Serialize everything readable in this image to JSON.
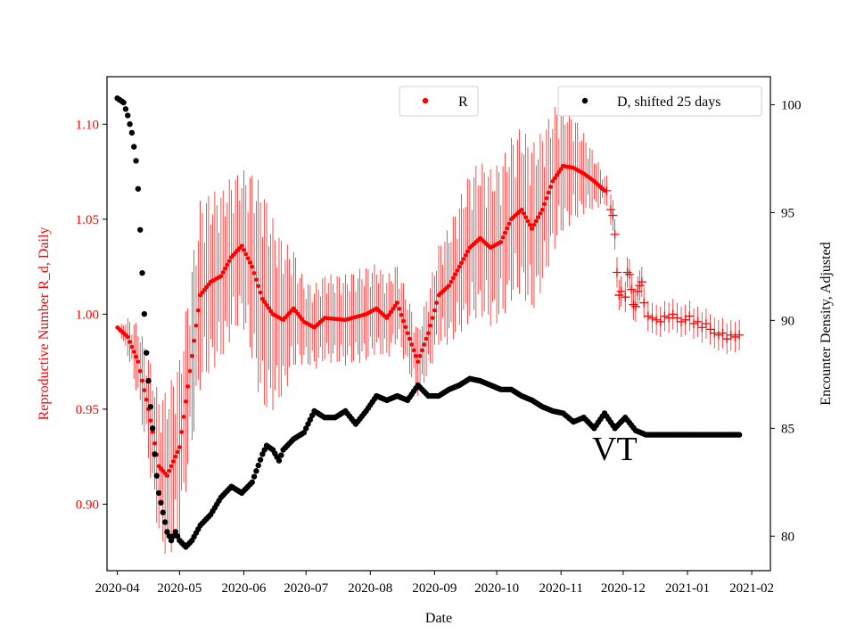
{
  "chart_data": {
    "type": "scatter",
    "title": "",
    "xlabel": "Date",
    "ylabel_left": "Reproductive Number R_d, Daily",
    "ylabel_right": "Encounter Density, Adjusted",
    "annotation": "VT",
    "x_ticks": [
      "2020-04",
      "2020-05",
      "2020-06",
      "2020-07",
      "2020-08",
      "2020-09",
      "2020-10",
      "2020-11",
      "2020-12",
      "2021-01",
      "2021-02"
    ],
    "y_left_ticks": [
      "0.90",
      "0.95",
      "1.00",
      "1.05",
      "1.10"
    ],
    "y_right_ticks": [
      "80",
      "85",
      "90",
      "95",
      "100"
    ],
    "x_range_days": [
      -5,
      315
    ],
    "y_left_range": [
      0.865,
      1.125
    ],
    "y_right_range": [
      78.4,
      101.3
    ],
    "colors": {
      "R": "#ff0000",
      "D": "#000000",
      "left_axis": "#ff0000"
    },
    "legend": [
      {
        "label": "R",
        "color": "#ff0000",
        "placement": "top-center"
      },
      {
        "label": "D, shifted 25 days",
        "color": "#000000",
        "placement": "top-right"
      }
    ],
    "series": [
      {
        "name": "R",
        "axis": "left",
        "marker": "dot",
        "day_range": [
          0,
          235
        ],
        "keypoints": [
          [
            0,
            0.993
          ],
          [
            5,
            0.988
          ],
          [
            10,
            0.975
          ],
          [
            15,
            0.95
          ],
          [
            20,
            0.92
          ],
          [
            24,
            0.915
          ],
          [
            30,
            0.93
          ],
          [
            35,
            0.97
          ],
          [
            40,
            1.01
          ],
          [
            45,
            1.017
          ],
          [
            50,
            1.02
          ],
          [
            55,
            1.03
          ],
          [
            60,
            1.036
          ],
          [
            65,
            1.025
          ],
          [
            70,
            1.008
          ],
          [
            75,
            1.0
          ],
          [
            80,
            0.997
          ],
          [
            85,
            1.003
          ],
          [
            90,
            0.996
          ],
          [
            95,
            0.993
          ],
          [
            100,
            0.998
          ],
          [
            110,
            0.997
          ],
          [
            120,
            1.0
          ],
          [
            125,
            1.003
          ],
          [
            130,
            0.998
          ],
          [
            135,
            1.006
          ],
          [
            140,
            0.99
          ],
          [
            145,
            0.975
          ],
          [
            150,
            0.99
          ],
          [
            155,
            1.01
          ],
          [
            160,
            1.015
          ],
          [
            165,
            1.025
          ],
          [
            170,
            1.035
          ],
          [
            175,
            1.04
          ],
          [
            180,
            1.035
          ],
          [
            185,
            1.038
          ],
          [
            190,
            1.05
          ],
          [
            195,
            1.055
          ],
          [
            200,
            1.045
          ],
          [
            205,
            1.055
          ],
          [
            210,
            1.07
          ],
          [
            215,
            1.078
          ],
          [
            220,
            1.077
          ],
          [
            225,
            1.074
          ],
          [
            230,
            1.07
          ],
          [
            235,
            1.065
          ]
        ],
        "error_halfwidth_keypoints": [
          [
            0,
            0.0
          ],
          [
            10,
            0.02
          ],
          [
            24,
            0.045
          ],
          [
            40,
            0.05
          ],
          [
            60,
            0.04
          ],
          [
            70,
            0.06
          ],
          [
            90,
            0.022
          ],
          [
            120,
            0.025
          ],
          [
            145,
            0.018
          ],
          [
            170,
            0.04
          ],
          [
            200,
            0.045
          ],
          [
            215,
            0.035
          ],
          [
            235,
            0.008
          ]
        ]
      },
      {
        "name": "R (tail, plus markers)",
        "axis": "left",
        "marker": "plus",
        "points": [
          [
            236,
            1.065
          ],
          [
            238,
            1.055
          ],
          [
            239,
            1.052
          ],
          [
            240,
            1.042
          ],
          [
            241,
            1.022
          ],
          [
            242,
            1.01
          ],
          [
            243,
            1.012
          ],
          [
            245,
            1.009
          ],
          [
            246,
            1.022
          ],
          [
            247,
            1.021
          ],
          [
            248,
            1.013
          ],
          [
            249,
            1.005
          ],
          [
            250,
            1.004
          ],
          [
            251,
            1.012
          ],
          [
            252,
            1.015
          ],
          [
            253,
            1.017
          ],
          [
            254,
            1.006
          ],
          [
            256,
            0.999
          ],
          [
            258,
            0.998
          ],
          [
            260,
            0.997
          ],
          [
            262,
            0.996
          ],
          [
            264,
            0.999
          ],
          [
            266,
            0.998
          ],
          [
            268,
            1.0
          ],
          [
            270,
            0.998
          ],
          [
            272,
            0.996
          ],
          [
            274,
            0.997
          ],
          [
            276,
            0.999
          ],
          [
            278,
            0.995
          ],
          [
            280,
            0.996
          ],
          [
            282,
            0.993
          ],
          [
            284,
            0.995
          ],
          [
            286,
            0.992
          ],
          [
            288,
            0.99
          ],
          [
            290,
            0.989
          ],
          [
            292,
            0.99
          ],
          [
            294,
            0.987
          ],
          [
            296,
            0.989
          ],
          [
            298,
            0.988
          ],
          [
            300,
            0.989
          ]
        ],
        "error_halfwidth": 0.008
      },
      {
        "name": "D, shifted 25 days",
        "axis": "right",
        "marker": "dot",
        "day_range": [
          0,
          300
        ],
        "keypoints": [
          [
            0,
            100.3
          ],
          [
            3,
            100.1
          ],
          [
            5,
            99.5
          ],
          [
            7,
            98.7
          ],
          [
            9,
            97.4
          ],
          [
            10,
            96.1
          ],
          [
            11,
            94.2
          ],
          [
            12,
            92.2
          ],
          [
            13,
            90.3
          ],
          [
            14,
            88.5
          ],
          [
            15,
            87.2
          ],
          [
            16,
            86.0
          ],
          [
            17,
            85.0
          ],
          [
            18,
            83.8
          ],
          [
            19,
            82.8
          ],
          [
            20,
            82.0
          ],
          [
            22,
            81.1
          ],
          [
            24,
            80.2
          ],
          [
            26,
            79.8
          ],
          [
            28,
            80.2
          ],
          [
            30,
            79.8
          ],
          [
            33,
            79.5
          ],
          [
            36,
            79.8
          ],
          [
            40,
            80.5
          ],
          [
            45,
            81.0
          ],
          [
            50,
            81.8
          ],
          [
            55,
            82.3
          ],
          [
            60,
            82.0
          ],
          [
            65,
            82.5
          ],
          [
            70,
            83.8
          ],
          [
            72,
            84.2
          ],
          [
            75,
            84.0
          ],
          [
            78,
            83.5
          ],
          [
            80,
            84.0
          ],
          [
            85,
            84.5
          ],
          [
            90,
            84.8
          ],
          [
            95,
            85.8
          ],
          [
            100,
            85.5
          ],
          [
            105,
            85.5
          ],
          [
            110,
            85.8
          ],
          [
            115,
            85.2
          ],
          [
            120,
            85.8
          ],
          [
            125,
            86.5
          ],
          [
            130,
            86.3
          ],
          [
            135,
            86.5
          ],
          [
            140,
            86.3
          ],
          [
            145,
            87.0
          ],
          [
            150,
            86.5
          ],
          [
            155,
            86.5
          ],
          [
            160,
            86.8
          ],
          [
            165,
            87.0
          ],
          [
            170,
            87.3
          ],
          [
            175,
            87.2
          ],
          [
            180,
            87.0
          ],
          [
            185,
            86.8
          ],
          [
            190,
            86.8
          ],
          [
            195,
            86.5
          ],
          [
            200,
            86.3
          ],
          [
            205,
            86.0
          ],
          [
            210,
            85.8
          ],
          [
            215,
            85.7
          ],
          [
            220,
            85.3
          ],
          [
            225,
            85.5
          ],
          [
            230,
            85.0
          ],
          [
            235,
            85.7
          ],
          [
            240,
            85.0
          ],
          [
            245,
            85.5
          ],
          [
            250,
            84.9
          ],
          [
            255,
            84.7
          ],
          [
            260,
            84.7
          ],
          [
            300,
            84.7
          ]
        ]
      }
    ]
  }
}
